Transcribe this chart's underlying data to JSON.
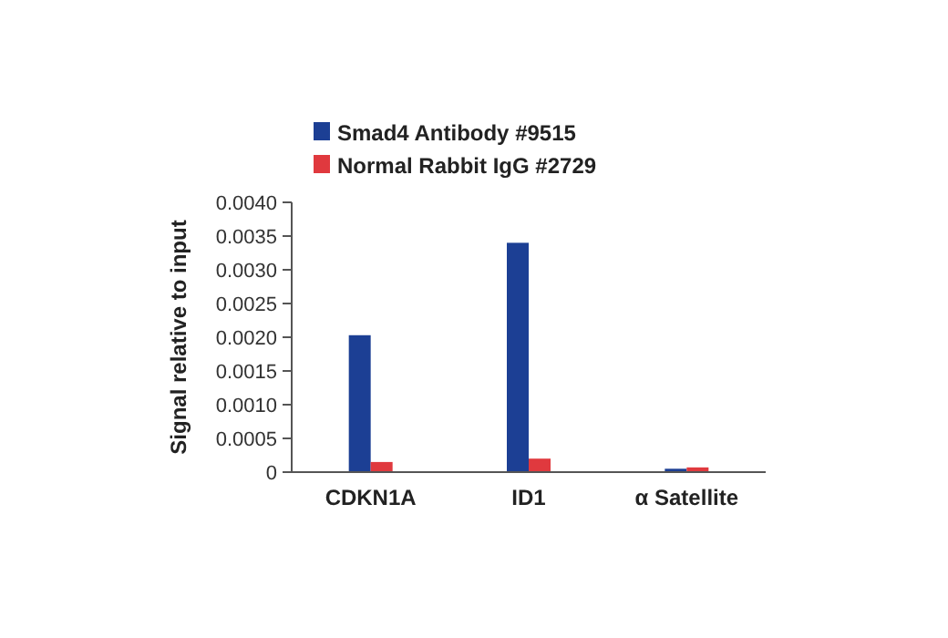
{
  "chart_data": {
    "type": "bar",
    "ylabel": "Signal relative to input",
    "categories": [
      "CDKN1A",
      "ID1",
      "α Satellite"
    ],
    "series": [
      {
        "name": "Smad4 Antibody #9515",
        "color": "#1c3f94",
        "values": [
          0.00203,
          0.0034,
          5e-05
        ]
      },
      {
        "name": "Normal Rabbit IgG #2729",
        "color": "#e0393e",
        "values": [
          0.00015,
          0.0002,
          7e-05
        ]
      }
    ],
    "ylim": [
      0,
      0.004
    ],
    "yticks": [
      0,
      {
        "value": 0.0005,
        "label": "0.0005"
      },
      {
        "value": 0.001,
        "label": "0.0010"
      },
      {
        "value": 0.0015,
        "label": "0.0015"
      },
      {
        "value": 0.002,
        "label": "0.0020"
      },
      {
        "value": 0.0025,
        "label": "0.0025"
      },
      {
        "value": 0.003,
        "label": "0.0030"
      },
      {
        "value": 0.0035,
        "label": "0.0035"
      },
      {
        "value": 0.004,
        "label": "0.0040"
      }
    ],
    "grid": false,
    "legend": "top"
  }
}
